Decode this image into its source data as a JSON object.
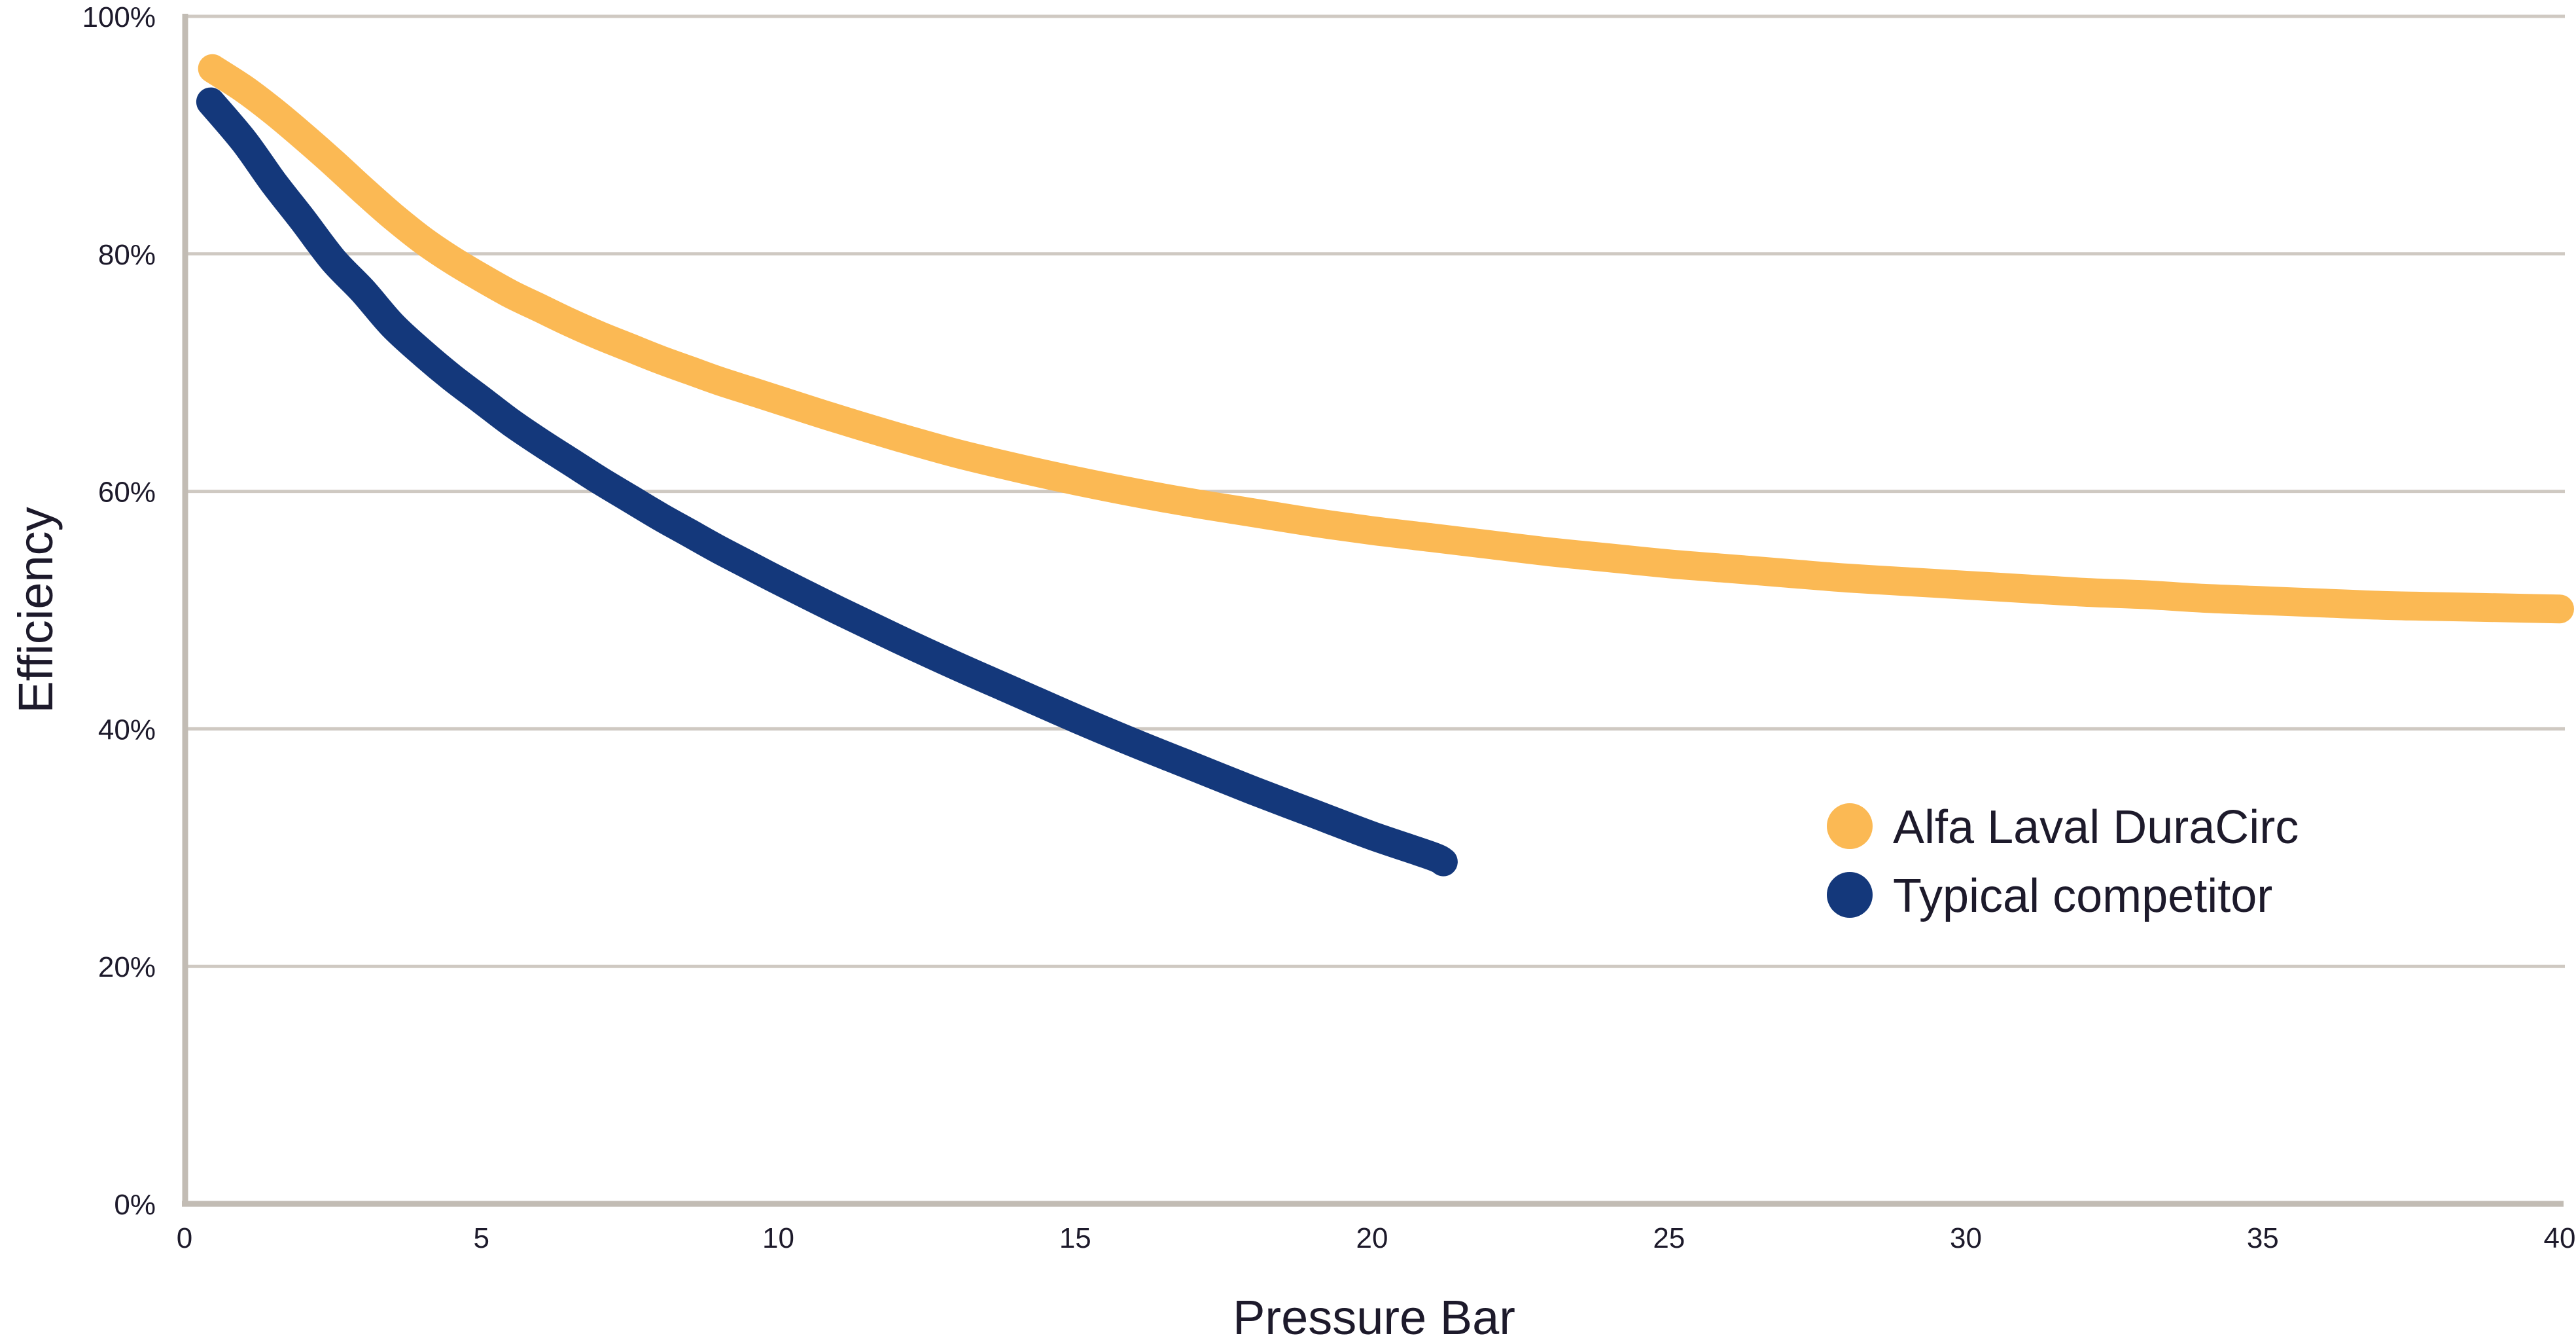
{
  "chart_data": {
    "type": "line",
    "title": "",
    "xlabel": "Pressure Bar",
    "ylabel": "Efficiency",
    "xlim": [
      0,
      40
    ],
    "ylim": [
      0,
      100
    ],
    "grid": "horizontal",
    "legend_position": "inside-right",
    "x_ticks": [
      {
        "value": 0,
        "label": "0"
      },
      {
        "value": 5,
        "label": "5"
      },
      {
        "value": 10,
        "label": "10"
      },
      {
        "value": 15,
        "label": "15"
      },
      {
        "value": 20,
        "label": "20"
      },
      {
        "value": 25,
        "label": "25"
      },
      {
        "value": 30,
        "label": "30"
      },
      {
        "value": 35,
        "label": "35"
      },
      {
        "value": 40,
        "label": "40"
      }
    ],
    "y_ticks": [
      {
        "value": 0,
        "label": "0%"
      },
      {
        "value": 20,
        "label": "20%"
      },
      {
        "value": 40,
        "label": "40%"
      },
      {
        "value": 60,
        "label": "60%"
      },
      {
        "value": 80,
        "label": "80%"
      },
      {
        "value": 100,
        "label": "100%"
      }
    ],
    "series": [
      {
        "name": "Alfa Laval DuraCirc",
        "color": "#FBB954",
        "points": [
          [
            0.47,
            95.6
          ],
          [
            1,
            93.9
          ],
          [
            1.5,
            92.0
          ],
          [
            2,
            89.9
          ],
          [
            2.5,
            87.7
          ],
          [
            3,
            85.4
          ],
          [
            3.5,
            83.2
          ],
          [
            4,
            81.2
          ],
          [
            4.5,
            79.5
          ],
          [
            5,
            78.0
          ],
          [
            5.5,
            76.6
          ],
          [
            6,
            75.4
          ],
          [
            6.5,
            74.2
          ],
          [
            7,
            73.1
          ],
          [
            7.5,
            72.1
          ],
          [
            8,
            71.1
          ],
          [
            8.5,
            70.2
          ],
          [
            9,
            69.3
          ],
          [
            9.5,
            68.5
          ],
          [
            10,
            67.7
          ],
          [
            11,
            66.1
          ],
          [
            12,
            64.6
          ],
          [
            13,
            63.2
          ],
          [
            14,
            62.0
          ],
          [
            15,
            60.9
          ],
          [
            16,
            59.9
          ],
          [
            17,
            59.0
          ],
          [
            18,
            58.2
          ],
          [
            19,
            57.4
          ],
          [
            20,
            56.7
          ],
          [
            21,
            56.1
          ],
          [
            22,
            55.5
          ],
          [
            23,
            54.9
          ],
          [
            24,
            54.4
          ],
          [
            25,
            53.9
          ],
          [
            26,
            53.5
          ],
          [
            27,
            53.1
          ],
          [
            28,
            52.7
          ],
          [
            29,
            52.4
          ],
          [
            30,
            52.1
          ],
          [
            31,
            51.8
          ],
          [
            32,
            51.5
          ],
          [
            33,
            51.3
          ],
          [
            34,
            51.0
          ],
          [
            35,
            50.8
          ],
          [
            36,
            50.6
          ],
          [
            37,
            50.4
          ],
          [
            38,
            50.3
          ],
          [
            39,
            50.2
          ],
          [
            40,
            50.1
          ]
        ]
      },
      {
        "name": "Typical competitor",
        "color": "#14387B",
        "points": [
          [
            0.44,
            92.8
          ],
          [
            1,
            89.5
          ],
          [
            1.5,
            86.0
          ],
          [
            2,
            82.8
          ],
          [
            2.5,
            79.5
          ],
          [
            3,
            76.9
          ],
          [
            3.5,
            74.0
          ],
          [
            4,
            71.7
          ],
          [
            4.5,
            69.6
          ],
          [
            5,
            67.7
          ],
          [
            5.5,
            65.8
          ],
          [
            6,
            64.1
          ],
          [
            6.5,
            62.5
          ],
          [
            7,
            60.9
          ],
          [
            7.5,
            59.4
          ],
          [
            8,
            57.9
          ],
          [
            8.5,
            56.5
          ],
          [
            9,
            55.1
          ],
          [
            9.5,
            53.8
          ],
          [
            10,
            52.5
          ],
          [
            11,
            50.0
          ],
          [
            12,
            47.6
          ],
          [
            13,
            45.3
          ],
          [
            14,
            43.1
          ],
          [
            15,
            40.9
          ],
          [
            16,
            38.8
          ],
          [
            17,
            36.8
          ],
          [
            18,
            34.8
          ],
          [
            19,
            32.9
          ],
          [
            20,
            31.0
          ],
          [
            21,
            29.3
          ],
          [
            21.2,
            28.8
          ]
        ]
      }
    ],
    "palette": {
      "grid": "#CFC9C2",
      "axis": "#C2BCB4",
      "text": "#1D1A2B",
      "background": "#FFFFFF"
    }
  }
}
